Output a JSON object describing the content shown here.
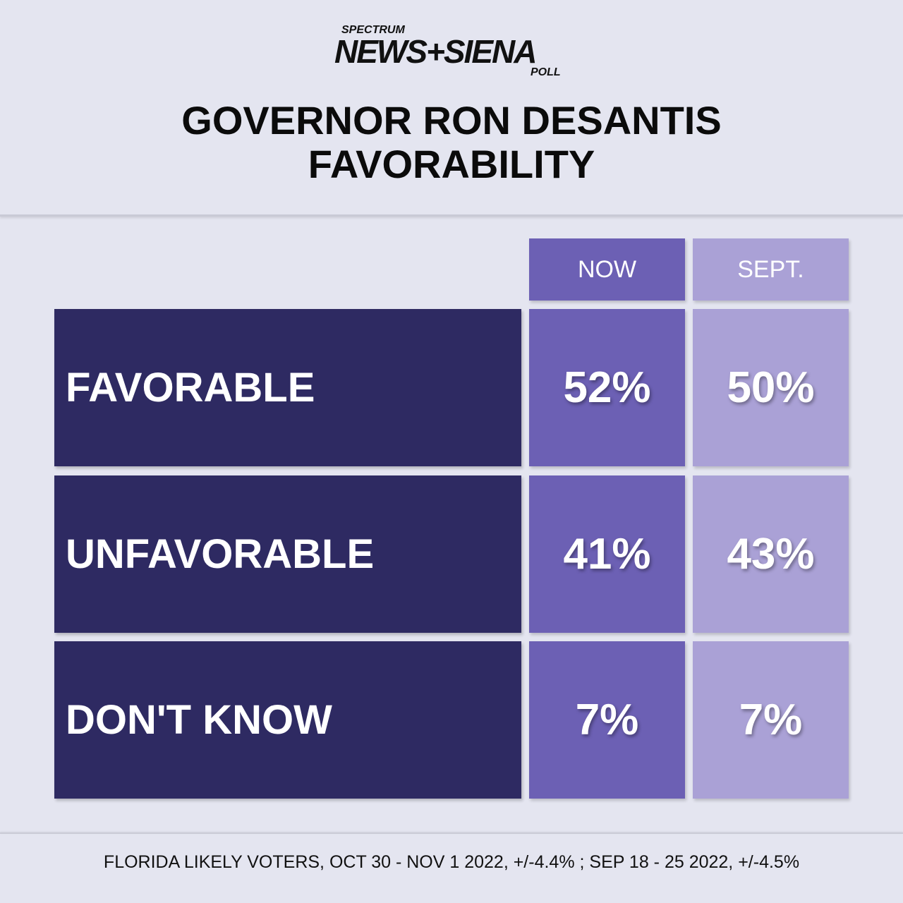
{
  "logo": {
    "top": "SPECTRUM",
    "main": "NEWS+SIENA",
    "bottom": "POLL"
  },
  "title_lines": [
    "GOVERNOR RON DESANTIS",
    "FAVORABILITY"
  ],
  "chart_data": {
    "type": "table",
    "title": "GOVERNOR RON DESANTIS FAVORABILITY",
    "columns": [
      "NOW",
      "SEPT."
    ],
    "rows": [
      {
        "label": "FAVORABLE",
        "values": [
          "52%",
          "50%"
        ]
      },
      {
        "label": "UNFAVORABLE",
        "values": [
          "41%",
          "43%"
        ]
      },
      {
        "label": "DON'T KNOW",
        "values": [
          "7%",
          "7%"
        ]
      }
    ]
  },
  "colors": {
    "label_bg": "#2e2a62",
    "now_bg": "#6c60b4",
    "sept_bg": "#aaa1d6",
    "page_bg": "#e4e5f0"
  },
  "footnote": "FLORIDA LIKELY VOTERS, OCT 30 - NOV 1 2022, +/-4.4% ; SEP 18 - 25 2022, +/-4.5%"
}
